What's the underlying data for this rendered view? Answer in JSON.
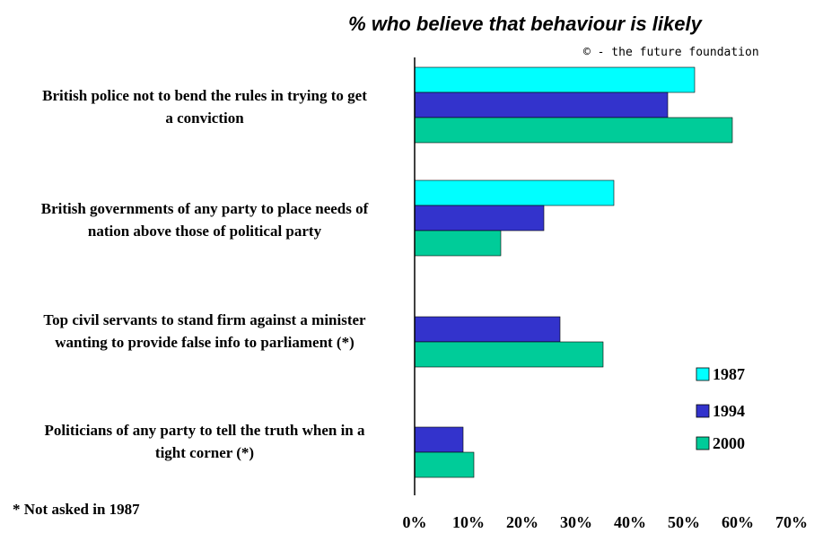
{
  "chart_data": {
    "type": "bar",
    "orientation": "horizontal",
    "title": "% who believe that behaviour is likely",
    "credit": "© - the future foundation",
    "note": "* Not asked in 1987",
    "categories": [
      [
        "British police not to bend the rules in trying to get",
        "a conviction"
      ],
      [
        "British governments of any party to place needs of",
        "nation above those of political party"
      ],
      [
        "Top civil servants to stand firm against a minister",
        "wanting to provide false info to parliament (*)"
      ],
      [
        "Politicians of any party to tell the truth when in a",
        "tight corner (*)"
      ]
    ],
    "series": [
      {
        "name": "1987",
        "color": "#00FFFF",
        "values": [
          52,
          37,
          null,
          null
        ]
      },
      {
        "name": "1994",
        "color": "#3333CC",
        "values": [
          47,
          24,
          27,
          9
        ]
      },
      {
        "name": "2000",
        "color": "#00CC99",
        "values": [
          59,
          16,
          35,
          11
        ]
      }
    ],
    "xlim": [
      0,
      70
    ],
    "xticks": [
      "0%",
      "10%",
      "20%",
      "30%",
      "40%",
      "50%",
      "60%",
      "70%"
    ],
    "grid": false,
    "legend_position": "bottom-right"
  }
}
